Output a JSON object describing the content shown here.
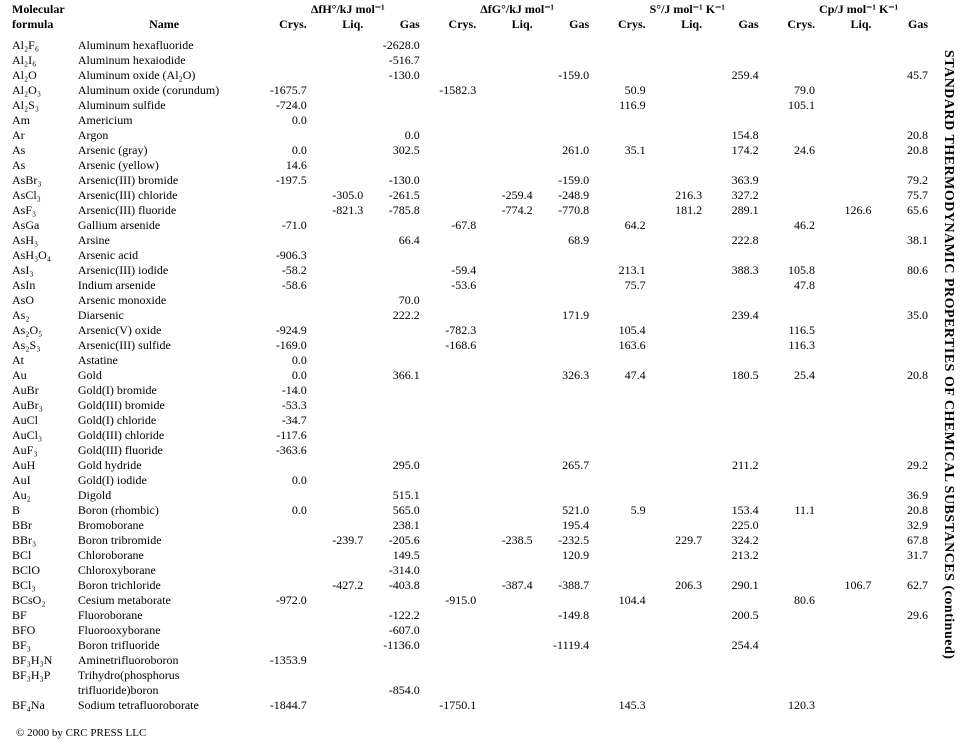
{
  "page_title_vertical": "STANDARD THERMODYNAMIC PROPERTIES OF CHEMICAL SUBSTANCES (continued)",
  "footer": "© 2000 by CRC PRESS LLC",
  "header": {
    "groups": [
      "Molecular",
      "",
      "ΔfH°/kJ mol⁻¹",
      "ΔfG°/kJ mol⁻¹",
      "S°/J mol⁻¹ K⁻¹",
      "Cp/J mol⁻¹ K⁻¹"
    ],
    "row2": [
      "formula",
      "Name",
      "Crys.",
      "Liq.",
      "Gas",
      "Crys.",
      "Liq.",
      "Gas",
      "Crys.",
      "Liq.",
      "Gas",
      "Crys.",
      "Liq.",
      "Gas"
    ]
  },
  "rows": [
    {
      "f": "Al₂F₆",
      "n": "Aluminum hexafluoride",
      "hG": "-2628.0"
    },
    {
      "f": "Al₂I₆",
      "n": "Aluminum hexaiodide",
      "hG": "-516.7"
    },
    {
      "f": "Al₂O",
      "n": "Aluminum oxide (Al₂O)",
      "hG": "-130.0",
      "gG": "-159.0",
      "sG": "259.4",
      "cG": "45.7"
    },
    {
      "f": "Al₂O₃",
      "n": "Aluminum oxide (corundum)",
      "hC": "-1675.7",
      "gC": "-1582.3",
      "sC": "50.9",
      "cC": "79.0"
    },
    {
      "f": "Al₂S₃",
      "n": "Aluminum sulfide",
      "hC": "-724.0",
      "sC": "116.9",
      "cC": "105.1"
    },
    {
      "f": "Am",
      "n": "Americium",
      "hC": "0.0"
    },
    {
      "f": "Ar",
      "n": "Argon",
      "hG": "0.0",
      "sG": "154.8",
      "cG": "20.8"
    },
    {
      "f": "As",
      "n": "Arsenic (gray)",
      "hC": "0.0",
      "hG": "302.5",
      "gG": "261.0",
      "sC": "35.1",
      "sG": "174.2",
      "cC": "24.6",
      "cG": "20.8"
    },
    {
      "f": "As",
      "n": "Arsenic (yellow)",
      "hC": "14.6"
    },
    {
      "f": "AsBr₃",
      "n": "Arsenic(III) bromide",
      "hC": "-197.5",
      "hG": "-130.0",
      "gG": "-159.0",
      "sG": "363.9",
      "cG": "79.2"
    },
    {
      "f": "AsCl₃",
      "n": "Arsenic(III) chloride",
      "hL": "-305.0",
      "hG": "-261.5",
      "gL": "-259.4",
      "gG": "-248.9",
      "sL": "216.3",
      "sG": "327.2",
      "cG": "75.7"
    },
    {
      "f": "AsF₃",
      "n": "Arsenic(III) fluoride",
      "hL": "-821.3",
      "hG": "-785.8",
      "gL": "-774.2",
      "gG": "-770.8",
      "sL": "181.2",
      "sG": "289.1",
      "cL": "126.6",
      "cG": "65.6"
    },
    {
      "f": "AsGa",
      "n": "Gallium arsenide",
      "hC": "-71.0",
      "gC": "-67.8",
      "sC": "64.2",
      "cC": "46.2"
    },
    {
      "f": "AsH₃",
      "n": "Arsine",
      "hG": "66.4",
      "gG": "68.9",
      "sG": "222.8",
      "cG": "38.1"
    },
    {
      "f": "AsH₃O₄",
      "n": "Arsenic acid",
      "hC": "-906.3"
    },
    {
      "f": "AsI₃",
      "n": "Arsenic(III) iodide",
      "hC": "-58.2",
      "gC": "-59.4",
      "sC": "213.1",
      "sG": "388.3",
      "cC": "105.8",
      "cG": "80.6"
    },
    {
      "f": "AsIn",
      "n": "Indium arsenide",
      "hC": "-58.6",
      "gC": "-53.6",
      "sC": "75.7",
      "cC": "47.8"
    },
    {
      "f": "AsO",
      "n": "Arsenic monoxide",
      "hG": "70.0"
    },
    {
      "f": "As₂",
      "n": "Diarsenic",
      "hG": "222.2",
      "gG": "171.9",
      "sG": "239.4",
      "cG": "35.0"
    },
    {
      "f": "As₂O₅",
      "n": "Arsenic(V) oxide",
      "hC": "-924.9",
      "gC": "-782.3",
      "sC": "105.4",
      "cC": "116.5"
    },
    {
      "f": "As₂S₃",
      "n": "Arsenic(III) sulfide",
      "hC": "-169.0",
      "gC": "-168.6",
      "sC": "163.6",
      "cC": "116.3"
    },
    {
      "f": "At",
      "n": "Astatine",
      "hC": "0.0"
    },
    {
      "f": "Au",
      "n": "Gold",
      "hC": "0.0",
      "hG": "366.1",
      "gG": "326.3",
      "sC": "47.4",
      "sG": "180.5",
      "cC": "25.4",
      "cG": "20.8"
    },
    {
      "f": "AuBr",
      "n": "Gold(I) bromide",
      "hC": "-14.0"
    },
    {
      "f": "AuBr₃",
      "n": "Gold(III) bromide",
      "hC": "-53.3"
    },
    {
      "f": "AuCl",
      "n": "Gold(I) chloride",
      "hC": "-34.7"
    },
    {
      "f": "AuCl₃",
      "n": "Gold(III) chloride",
      "hC": "-117.6"
    },
    {
      "f": "AuF₃",
      "n": "Gold(III) fluoride",
      "hC": "-363.6"
    },
    {
      "f": "AuH",
      "n": "Gold hydride",
      "hG": "295.0",
      "gG": "265.7",
      "sG": "211.2",
      "cG": "29.2"
    },
    {
      "f": "AuI",
      "n": "Gold(I) iodide",
      "hC": "0.0"
    },
    {
      "f": "Au₂",
      "n": "Digold",
      "hG": "515.1",
      "cG": "36.9"
    },
    {
      "f": "B",
      "n": "Boron (rhombic)",
      "hC": "0.0",
      "hG": "565.0",
      "gG": "521.0",
      "sC": "5.9",
      "sG": "153.4",
      "cC": "11.1",
      "cG": "20.8"
    },
    {
      "f": "BBr",
      "n": "Bromoborane",
      "hG": "238.1",
      "gG": "195.4",
      "sG": "225.0",
      "cG": "32.9"
    },
    {
      "f": "BBr₃",
      "n": "Boron tribromide",
      "hL": "-239.7",
      "hG": "-205.6",
      "gL": "-238.5",
      "gG": "-232.5",
      "sL": "229.7",
      "sG": "324.2",
      "cG": "67.8"
    },
    {
      "f": "BCl",
      "n": "Chloroborane",
      "hG": "149.5",
      "gG": "120.9",
      "sG": "213.2",
      "cG": "31.7"
    },
    {
      "f": "BClO",
      "n": "Chloroxyborane",
      "hG": "-314.0"
    },
    {
      "f": "BCl₃",
      "n": "Boron trichloride",
      "hL": "-427.2",
      "hG": "-403.8",
      "gL": "-387.4",
      "gG": "-388.7",
      "sL": "206.3",
      "sG": "290.1",
      "cL": "106.7",
      "cG": "62.7"
    },
    {
      "f": "BCsO₂",
      "n": "Cesium metaborate",
      "hC": "-972.0",
      "gC": "-915.0",
      "sC": "104.4",
      "cC": "80.6"
    },
    {
      "f": "BF",
      "n": "Fluoroborane",
      "hG": "-122.2",
      "gG": "-149.8",
      "sG": "200.5",
      "cG": "29.6"
    },
    {
      "f": "BFO",
      "n": "Fluorooxyborane",
      "hG": "-607.0"
    },
    {
      "f": "BF₃",
      "n": "Boron trifluoride",
      "hG": "-1136.0",
      "gG": "-1119.4",
      "sG": "254.4"
    },
    {
      "f": "BF₃H₃N",
      "n": "Aminetrifluoroboron",
      "hC": "-1353.9"
    },
    {
      "f": "BF₃H₃P",
      "n": "Trihydro(phosphorus"
    },
    {
      "f": "",
      "n": "   trifluoride)boron",
      "hG": "-854.0"
    },
    {
      "f": "BF₄Na",
      "n": "Sodium tetrafluoroborate",
      "hC": "-1844.7",
      "gC": "-1750.1",
      "sC": "145.3",
      "cC": "120.3"
    }
  ]
}
